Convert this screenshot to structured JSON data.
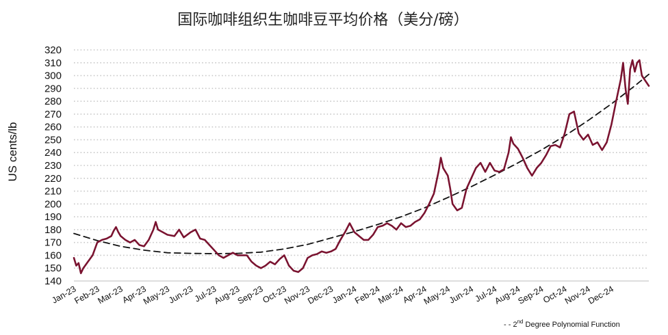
{
  "chart_data": {
    "type": "line",
    "title": "国际咖啡组织生咖啡豆平均价格（美分/磅）",
    "ylabel": "US cents/lb",
    "xlabel": "",
    "ylim": [
      140,
      320
    ],
    "ytick_step": 10,
    "grid": "horizontal dotted",
    "x_tick_labels": [
      "Jan-23",
      "Feb-23",
      "Mar-23",
      "Apr-23",
      "May-23",
      "Jun-23",
      "Jul-23",
      "Aug-23",
      "Sep-23",
      "Oct-23",
      "Nov-23",
      "Dec-23",
      "Jan-24",
      "Feb-24",
      "Mar-24",
      "Apr-24",
      "May-24",
      "Jun-24",
      "Jul-24",
      "Aug-24",
      "Sep-24",
      "Oct-24",
      "Nov-24",
      "Dec-24"
    ],
    "series": [
      {
        "name": "",
        "color": "#7a1330",
        "style": "solid",
        "points": [
          [
            0.0,
            158
          ],
          [
            0.1,
            152
          ],
          [
            0.2,
            154
          ],
          [
            0.3,
            146
          ],
          [
            0.4,
            150
          ],
          [
            0.6,
            155
          ],
          [
            0.8,
            160
          ],
          [
            1.0,
            170
          ],
          [
            1.2,
            172
          ],
          [
            1.4,
            173
          ],
          [
            1.6,
            175
          ],
          [
            1.7,
            179
          ],
          [
            1.8,
            182
          ],
          [
            1.9,
            178
          ],
          [
            2.0,
            175
          ],
          [
            2.2,
            172
          ],
          [
            2.4,
            170
          ],
          [
            2.6,
            172
          ],
          [
            2.8,
            168
          ],
          [
            3.0,
            167
          ],
          [
            3.2,
            172
          ],
          [
            3.4,
            180
          ],
          [
            3.5,
            186
          ],
          [
            3.6,
            180
          ],
          [
            3.8,
            178
          ],
          [
            4.0,
            176
          ],
          [
            4.3,
            175
          ],
          [
            4.5,
            180
          ],
          [
            4.7,
            174
          ],
          [
            5.0,
            178
          ],
          [
            5.2,
            180
          ],
          [
            5.4,
            173
          ],
          [
            5.6,
            172
          ],
          [
            5.8,
            168
          ],
          [
            6.0,
            164
          ],
          [
            6.2,
            160
          ],
          [
            6.4,
            158
          ],
          [
            6.6,
            160
          ],
          [
            6.8,
            162
          ],
          [
            7.0,
            160
          ],
          [
            7.2,
            160
          ],
          [
            7.4,
            160
          ],
          [
            7.6,
            155
          ],
          [
            7.8,
            152
          ],
          [
            8.0,
            150
          ],
          [
            8.2,
            152
          ],
          [
            8.4,
            155
          ],
          [
            8.6,
            153
          ],
          [
            8.8,
            157
          ],
          [
            9.0,
            160
          ],
          [
            9.2,
            152
          ],
          [
            9.4,
            148
          ],
          [
            9.6,
            147
          ],
          [
            9.8,
            150
          ],
          [
            10.0,
            158
          ],
          [
            10.2,
            160
          ],
          [
            10.4,
            161
          ],
          [
            10.6,
            163
          ],
          [
            10.8,
            162
          ],
          [
            11.0,
            163
          ],
          [
            11.2,
            165
          ],
          [
            11.4,
            172
          ],
          [
            11.6,
            178
          ],
          [
            11.8,
            185
          ],
          [
            12.0,
            178
          ],
          [
            12.2,
            175
          ],
          [
            12.4,
            172
          ],
          [
            12.6,
            172
          ],
          [
            12.8,
            176
          ],
          [
            13.0,
            182
          ],
          [
            13.2,
            183
          ],
          [
            13.4,
            185
          ],
          [
            13.6,
            183
          ],
          [
            13.8,
            180
          ],
          [
            14.0,
            185
          ],
          [
            14.2,
            182
          ],
          [
            14.4,
            183
          ],
          [
            14.6,
            186
          ],
          [
            14.8,
            188
          ],
          [
            15.0,
            193
          ],
          [
            15.2,
            200
          ],
          [
            15.4,
            208
          ],
          [
            15.6,
            225
          ],
          [
            15.7,
            236
          ],
          [
            15.8,
            228
          ],
          [
            16.0,
            222
          ],
          [
            16.1,
            212
          ],
          [
            16.2,
            200
          ],
          [
            16.4,
            195
          ],
          [
            16.6,
            197
          ],
          [
            16.8,
            212
          ],
          [
            17.0,
            220
          ],
          [
            17.2,
            228
          ],
          [
            17.4,
            232
          ],
          [
            17.6,
            225
          ],
          [
            17.8,
            232
          ],
          [
            18.0,
            226
          ],
          [
            18.2,
            225
          ],
          [
            18.4,
            227
          ],
          [
            18.6,
            240
          ],
          [
            18.7,
            252
          ],
          [
            18.8,
            247
          ],
          [
            19.0,
            243
          ],
          [
            19.2,
            236
          ],
          [
            19.4,
            228
          ],
          [
            19.6,
            222
          ],
          [
            19.8,
            228
          ],
          [
            20.0,
            232
          ],
          [
            20.2,
            238
          ],
          [
            20.4,
            245
          ],
          [
            20.6,
            246
          ],
          [
            20.8,
            244
          ],
          [
            21.0,
            255
          ],
          [
            21.2,
            270
          ],
          [
            21.4,
            272
          ],
          [
            21.6,
            255
          ],
          [
            21.8,
            250
          ],
          [
            22.0,
            254
          ],
          [
            22.2,
            246
          ],
          [
            22.4,
            248
          ],
          [
            22.6,
            242
          ],
          [
            22.8,
            248
          ],
          [
            23.0,
            262
          ],
          [
            23.2,
            280
          ],
          [
            23.4,
            297
          ],
          [
            23.5,
            310
          ],
          [
            23.6,
            290
          ],
          [
            23.7,
            278
          ],
          [
            23.8,
            305
          ],
          [
            23.9,
            312
          ],
          [
            24.0,
            303
          ],
          [
            24.1,
            310
          ],
          [
            24.2,
            312
          ],
          [
            24.3,
            300
          ],
          [
            24.45,
            296
          ],
          [
            24.6,
            292
          ]
        ]
      },
      {
        "name": "2nd Degree Polynomial Function",
        "color": "#111111",
        "style": "dashed",
        "points": [
          [
            0.0,
            177
          ],
          [
            1.0,
            171.5
          ],
          [
            2.0,
            167
          ],
          [
            3.0,
            164
          ],
          [
            4.0,
            162
          ],
          [
            5.0,
            161.5
          ],
          [
            6.0,
            161.3
          ],
          [
            7.0,
            161.5
          ],
          [
            8.0,
            162.5
          ],
          [
            9.0,
            165
          ],
          [
            10.0,
            168.5
          ],
          [
            11.0,
            173.5
          ],
          [
            12.0,
            178.5
          ],
          [
            13.0,
            184
          ],
          [
            14.0,
            190
          ],
          [
            15.0,
            197
          ],
          [
            16.0,
            205
          ],
          [
            17.0,
            213.5
          ],
          [
            18.0,
            222.5
          ],
          [
            19.0,
            232
          ],
          [
            20.0,
            242
          ],
          [
            21.0,
            253
          ],
          [
            22.0,
            265
          ],
          [
            23.0,
            278
          ],
          [
            24.0,
            292
          ],
          [
            24.6,
            301
          ]
        ]
      }
    ],
    "legend": {
      "placement": "bottom-right",
      "marker": "- - ",
      "superscript": "nd",
      "label_prefix": "2",
      "label_rest": " Degree Polynomial Function"
    }
  }
}
